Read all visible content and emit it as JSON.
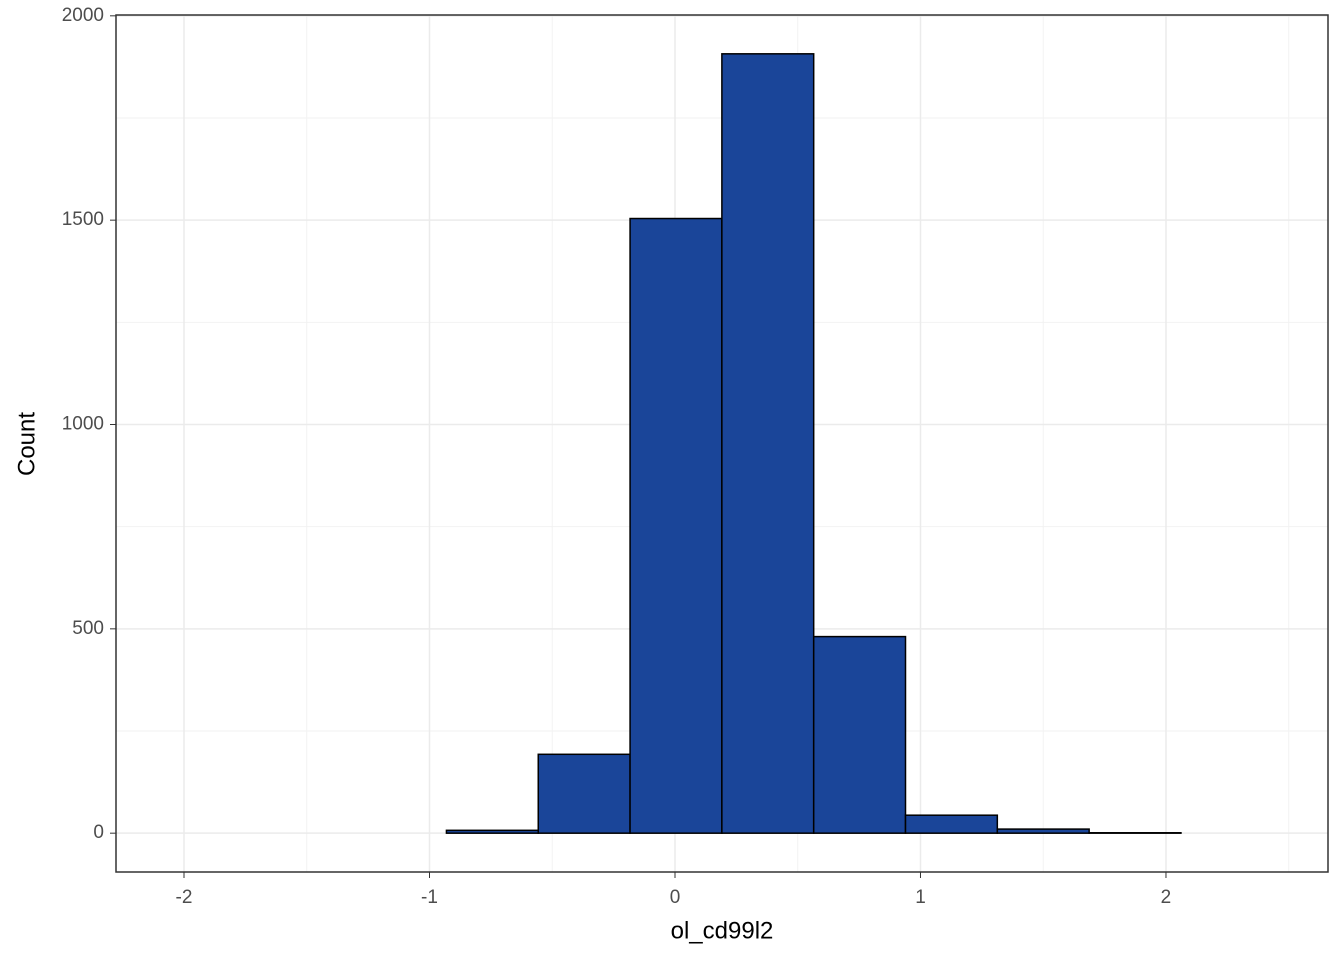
{
  "chart_data": {
    "type": "histogram",
    "x_label": "ol_cd99l2",
    "y_label": "Count",
    "bins": [
      -2.053,
      -1.679,
      -1.305,
      -0.931,
      -0.557,
      -0.183,
      0.191,
      0.565,
      0.939,
      1.313,
      1.687,
      2.061,
      2.435
    ],
    "values": [
      0,
      0,
      0,
      7,
      193,
      1504,
      1907,
      481,
      44,
      10,
      1,
      0
    ],
    "color": "#1a4599",
    "edge_color": "#000000",
    "xlim": [
      -2.277,
      2.66
    ],
    "xticks": [
      -2,
      -1,
      0,
      1,
      2
    ],
    "ylim": [
      -95,
      2002
    ],
    "yticks": [
      0,
      500,
      1000,
      1500,
      2000
    ],
    "grid": true
  }
}
